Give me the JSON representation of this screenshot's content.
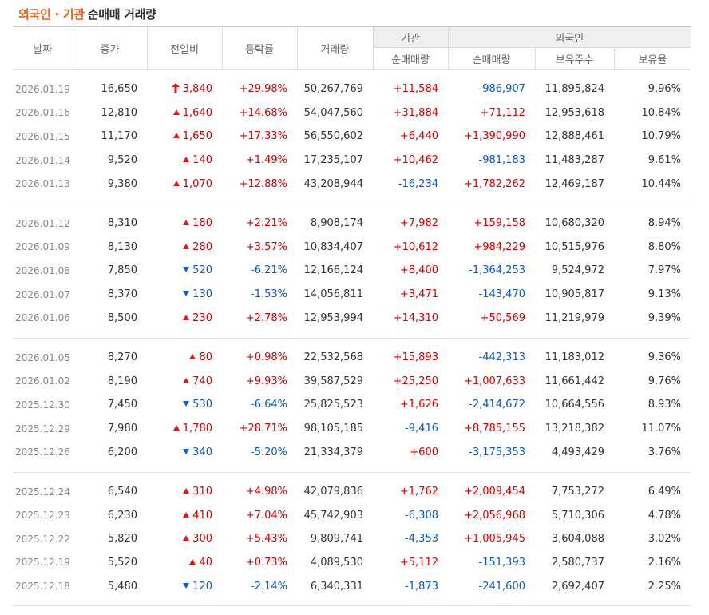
{
  "header": {
    "title_highlight": "외국인 · 기관",
    "title_plain": "순매매 거래량"
  },
  "columns": {
    "date": "날짜",
    "close": "종가",
    "change": "전일비",
    "rate": "등락률",
    "volume": "거래량",
    "institution_group": "기관",
    "foreign_group": "외국인",
    "inst_net": "순매매량",
    "foreign_net": "순매매량",
    "foreign_shares": "보유주수",
    "foreign_ratio": "보유율"
  },
  "colors": {
    "up": "#d60000",
    "down": "#0c57c1",
    "accent": "#e8621a"
  },
  "rows": [
    {
      "date": "2026.01.19",
      "close": "16,650",
      "dir": "upper",
      "change": "3,840",
      "rate": "+29.98%",
      "volume": "50,267,769",
      "inst": "+11,584",
      "foreign": "-986,907",
      "shares": "11,895,824",
      "ratio": "9.96%"
    },
    {
      "date": "2026.01.16",
      "close": "12,810",
      "dir": "up",
      "change": "1,640",
      "rate": "+14.68%",
      "volume": "54,047,560",
      "inst": "+31,884",
      "foreign": "+71,112",
      "shares": "12,953,618",
      "ratio": "10.84%"
    },
    {
      "date": "2026.01.15",
      "close": "11,170",
      "dir": "up",
      "change": "1,650",
      "rate": "+17.33%",
      "volume": "56,550,602",
      "inst": "+6,440",
      "foreign": "+1,390,990",
      "shares": "12,888,461",
      "ratio": "10.79%"
    },
    {
      "date": "2026.01.14",
      "close": "9,520",
      "dir": "up",
      "change": "140",
      "rate": "+1.49%",
      "volume": "17,235,107",
      "inst": "+10,462",
      "foreign": "-981,183",
      "shares": "11,483,287",
      "ratio": "9.61%"
    },
    {
      "date": "2026.01.13",
      "close": "9,380",
      "dir": "up",
      "change": "1,070",
      "rate": "+12.88%",
      "volume": "43,208,944",
      "inst": "-16,234",
      "foreign": "+1,782,262",
      "shares": "12,469,187",
      "ratio": "10.44%"
    },
    {
      "date": "2026.01.12",
      "close": "8,310",
      "dir": "up",
      "change": "180",
      "rate": "+2.21%",
      "volume": "8,908,174",
      "inst": "+7,982",
      "foreign": "+159,158",
      "shares": "10,680,320",
      "ratio": "8.94%"
    },
    {
      "date": "2026.01.09",
      "close": "8,130",
      "dir": "up",
      "change": "280",
      "rate": "+3.57%",
      "volume": "10,834,407",
      "inst": "+10,612",
      "foreign": "+984,229",
      "shares": "10,515,976",
      "ratio": "8.80%"
    },
    {
      "date": "2026.01.08",
      "close": "7,850",
      "dir": "down",
      "change": "520",
      "rate": "-6.21%",
      "volume": "12,166,124",
      "inst": "+8,400",
      "foreign": "-1,364,253",
      "shares": "9,524,972",
      "ratio": "7.97%"
    },
    {
      "date": "2026.01.07",
      "close": "8,370",
      "dir": "down",
      "change": "130",
      "rate": "-1.53%",
      "volume": "14,056,811",
      "inst": "+3,471",
      "foreign": "-143,470",
      "shares": "10,905,817",
      "ratio": "9.13%"
    },
    {
      "date": "2026.01.06",
      "close": "8,500",
      "dir": "up",
      "change": "230",
      "rate": "+2.78%",
      "volume": "12,953,994",
      "inst": "+14,310",
      "foreign": "+50,569",
      "shares": "11,219,979",
      "ratio": "9.39%"
    },
    {
      "date": "2026.01.05",
      "close": "8,270",
      "dir": "up",
      "change": "80",
      "rate": "+0.98%",
      "volume": "22,532,568",
      "inst": "+15,893",
      "foreign": "-442,313",
      "shares": "11,183,012",
      "ratio": "9.36%"
    },
    {
      "date": "2026.01.02",
      "close": "8,190",
      "dir": "up",
      "change": "740",
      "rate": "+9.93%",
      "volume": "39,587,529",
      "inst": "+25,250",
      "foreign": "+1,007,633",
      "shares": "11,661,442",
      "ratio": "9.76%"
    },
    {
      "date": "2025.12.30",
      "close": "7,450",
      "dir": "down",
      "change": "530",
      "rate": "-6.64%",
      "volume": "25,825,523",
      "inst": "+1,626",
      "foreign": "-2,414,672",
      "shares": "10,664,556",
      "ratio": "8.93%"
    },
    {
      "date": "2025.12.29",
      "close": "7,980",
      "dir": "up",
      "change": "1,780",
      "rate": "+28.71%",
      "volume": "98,105,185",
      "inst": "-9,416",
      "foreign": "+8,785,155",
      "shares": "13,218,382",
      "ratio": "11.07%"
    },
    {
      "date": "2025.12.26",
      "close": "6,200",
      "dir": "down",
      "change": "340",
      "rate": "-5.20%",
      "volume": "21,334,379",
      "inst": "+600",
      "foreign": "-3,175,353",
      "shares": "4,493,429",
      "ratio": "3.76%"
    },
    {
      "date": "2025.12.24",
      "close": "6,540",
      "dir": "up",
      "change": "310",
      "rate": "+4.98%",
      "volume": "42,079,836",
      "inst": "+1,762",
      "foreign": "+2,009,454",
      "shares": "7,753,272",
      "ratio": "6.49%"
    },
    {
      "date": "2025.12.23",
      "close": "6,230",
      "dir": "up",
      "change": "410",
      "rate": "+7.04%",
      "volume": "45,742,903",
      "inst": "-6,308",
      "foreign": "+2,056,968",
      "shares": "5,710,306",
      "ratio": "4.78%"
    },
    {
      "date": "2025.12.22",
      "close": "5,820",
      "dir": "up",
      "change": "300",
      "rate": "+5.43%",
      "volume": "9,809,741",
      "inst": "-4,353",
      "foreign": "+1,005,945",
      "shares": "3,604,088",
      "ratio": "3.02%"
    },
    {
      "date": "2025.12.19",
      "close": "5,520",
      "dir": "up",
      "change": "40",
      "rate": "+0.73%",
      "volume": "4,089,530",
      "inst": "+5,112",
      "foreign": "-151,393",
      "shares": "2,580,737",
      "ratio": "2.16%"
    },
    {
      "date": "2025.12.18",
      "close": "5,480",
      "dir": "down",
      "change": "120",
      "rate": "-2.14%",
      "volume": "6,340,331",
      "inst": "-1,873",
      "foreign": "-241,600",
      "shares": "2,692,407",
      "ratio": "2.25%"
    }
  ]
}
